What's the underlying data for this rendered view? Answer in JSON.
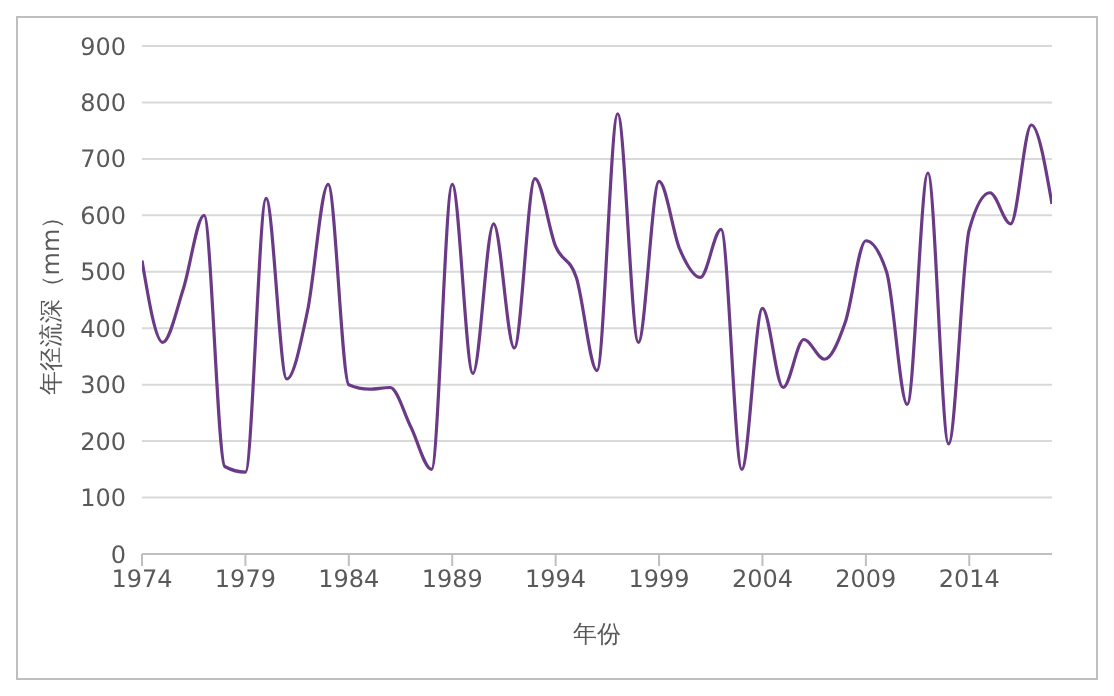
{
  "chart_data": {
    "type": "line",
    "xlabel": "年份",
    "ylabel": "年径流深（mm）",
    "x": [
      1974,
      1975,
      1976,
      1977,
      1978,
      1979,
      1980,
      1981,
      1982,
      1983,
      1984,
      1985,
      1986,
      1987,
      1988,
      1989,
      1990,
      1991,
      1992,
      1993,
      1994,
      1995,
      1996,
      1997,
      1998,
      1999,
      2000,
      2001,
      2002,
      2003,
      2004,
      2005,
      2006,
      2007,
      2008,
      2009,
      2010,
      2011,
      2012,
      2013,
      2014,
      2015,
      2016,
      2017,
      2018
    ],
    "series": [
      {
        "color": "#6b3a87",
        "values": [
          520,
          375,
          470,
          600,
          155,
          145,
          630,
          310,
          430,
          655,
          300,
          292,
          295,
          225,
          150,
          655,
          320,
          585,
          365,
          665,
          545,
          490,
          325,
          780,
          375,
          660,
          540,
          490,
          575,
          150,
          435,
          295,
          380,
          345,
          410,
          555,
          500,
          265,
          675,
          195,
          575,
          640,
          585,
          760,
          620
        ]
      }
    ],
    "xlim": [
      1974,
      2018
    ],
    "xticks": [
      1974,
      1979,
      1984,
      1989,
      1994,
      1999,
      2004,
      2009,
      2014
    ],
    "ylim": [
      0,
      900
    ],
    "yticks": [
      0,
      100,
      200,
      300,
      400,
      500,
      600,
      700,
      800,
      900
    ],
    "grid": "y",
    "legend": false,
    "marker": "none",
    "line_style": "solid"
  }
}
